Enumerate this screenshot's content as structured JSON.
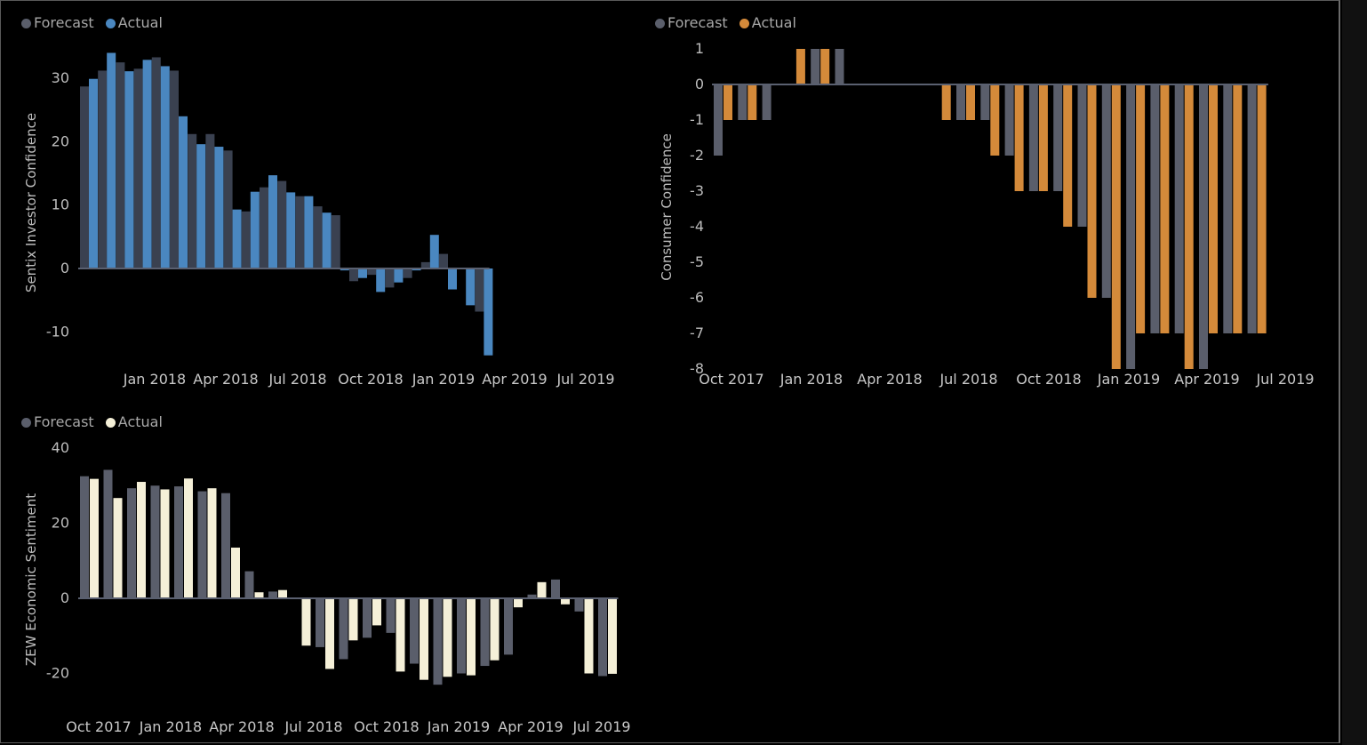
{
  "chart_data": [
    {
      "type": "bar",
      "id": "sentix",
      "ylabel": "Sentix Investor Confidence",
      "xlabel": "",
      "ylim": [
        -15,
        35
      ],
      "yticks": [
        -10,
        0,
        10,
        20,
        30
      ],
      "x_tick_labels": [
        "Jan 2018",
        "Apr 2018",
        "Jul 2018",
        "Oct 2018",
        "Jan 2019",
        "Apr 2019",
        "Jul 2019"
      ],
      "legend": [
        "Forecast",
        "Actual"
      ],
      "colors": {
        "Forecast": "#3a4150",
        "Actual": "#4a87c0"
      },
      "categories": [
        "Oct 2017",
        "Nov 2017",
        "Dec 2017",
        "Jan 2018",
        "Feb 2018",
        "Mar 2018",
        "Apr 2018",
        "May 2018",
        "Jun 2018",
        "Jul 2018",
        "Aug 2018",
        "Sep 2018",
        "Oct 2018",
        "Nov 2018",
        "Dec 2018",
        "Jan 2019",
        "Feb 2019",
        "Mar 2019",
        "Apr 2019",
        "May 2019",
        "Jun 2019",
        "Jul 2019",
        "Aug 2019"
      ],
      "series": [
        {
          "name": "Forecast",
          "values": [
            28.7,
            31.2,
            32.5,
            31.5,
            33.3,
            31.2,
            21.2,
            21.2,
            18.6,
            9.0,
            12.8,
            13.8,
            11.4,
            9.8,
            8.4,
            -2.0,
            -1.0,
            -3.0,
            -1.5,
            1.0,
            2.3,
            0.0,
            -6.8
          ]
        },
        {
          "name": "Actual",
          "values": [
            29.9,
            34.0,
            31.1,
            32.9,
            31.9,
            24.0,
            19.6,
            19.2,
            9.3,
            12.1,
            14.7,
            12.0,
            11.4,
            8.8,
            -0.3,
            -1.5,
            -3.7,
            -2.2,
            -0.3,
            5.3,
            -3.3,
            -5.8,
            -13.7
          ]
        }
      ]
    },
    {
      "type": "bar",
      "id": "consumer",
      "ylabel": "Consumer Confidence",
      "xlabel": "",
      "ylim": [
        -8,
        1
      ],
      "yticks": [
        1,
        0,
        -1,
        -2,
        -3,
        -4,
        -5,
        -6,
        -7,
        -8
      ],
      "x_tick_labels": [
        "Oct 2017",
        "Jan 2018",
        "Apr 2018",
        "Jul 2018",
        "Oct 2018",
        "Jan 2019",
        "Apr 2019",
        "Jul 2019"
      ],
      "legend": [
        "Forecast",
        "Actual"
      ],
      "colors": {
        "Forecast": "#5a5e6b",
        "Actual": "#d48a3a"
      },
      "categories": [
        "Oct 2017",
        "Nov 2017",
        "Dec 2017",
        "Jan 2018",
        "Feb 2018",
        "Mar 2018",
        "Apr 2018",
        "May 2018",
        "Jun 2018",
        "Jul 2018",
        "Aug 2018",
        "Sep 2018",
        "Oct 2018",
        "Nov 2018",
        "Dec 2018",
        "Jan 2019",
        "Feb 2019",
        "Mar 2019",
        "Apr 2019",
        "May 2019",
        "Jun 2019",
        "Jul 2019",
        "Aug 2019"
      ],
      "series": [
        {
          "name": "Forecast",
          "values": [
            -2,
            -1,
            -1,
            0,
            1,
            1,
            0,
            0,
            0,
            0,
            -1,
            -1,
            -2,
            -3,
            -3,
            -4,
            -6,
            -8,
            -7,
            -7,
            -8,
            -7,
            -7
          ]
        },
        {
          "name": "Actual",
          "values": [
            -1,
            -1,
            0,
            1,
            1,
            0,
            0,
            0,
            0,
            -1,
            -1,
            -2,
            -3,
            -3,
            -4,
            -6,
            -8,
            -7,
            -7,
            -8,
            -7,
            -7,
            -7
          ]
        }
      ]
    },
    {
      "type": "bar",
      "id": "zew",
      "ylabel": "ZEW Economic Sentiment",
      "xlabel": "",
      "ylim": [
        -30,
        40
      ],
      "yticks": [
        -20,
        0,
        20,
        40
      ],
      "x_tick_labels": [
        "Oct 2017",
        "Jan 2018",
        "Apr 2018",
        "Jul 2018",
        "Oct 2018",
        "Jan 2019",
        "Apr 2019",
        "Jul 2019"
      ],
      "legend": [
        "Forecast",
        "Actual"
      ],
      "colors": {
        "Forecast": "#5a5e6b",
        "Actual": "#f5f0d8"
      },
      "categories": [
        "Oct 2017",
        "Nov 2017",
        "Dec 2017",
        "Jan 2018",
        "Feb 2018",
        "Mar 2018",
        "Apr 2018",
        "May 2018",
        "Jun 2018",
        "Jul 2018",
        "Aug 2018",
        "Sep 2018",
        "Oct 2018",
        "Nov 2018",
        "Dec 2018",
        "Jan 2019",
        "Feb 2019",
        "Mar 2019",
        "Apr 2019",
        "May 2019",
        "Jun 2019",
        "Jul 2019",
        "Aug 2019"
      ],
      "series": [
        {
          "name": "Forecast",
          "values": [
            32.5,
            34.2,
            29.3,
            30.0,
            29.8,
            28.5,
            28.0,
            7.2,
            1.8,
            0.0,
            -13.0,
            -16.2,
            -10.5,
            -9.2,
            -17.4,
            -23.0,
            -20.0,
            -18.0,
            -15.0,
            1.0,
            5.0,
            -3.5,
            -20.7
          ]
        },
        {
          "name": "Actual",
          "values": [
            31.8,
            26.7,
            31.0,
            29.0,
            31.9,
            29.3,
            13.5,
            1.6,
            2.2,
            -12.6,
            -18.8,
            -11.2,
            -7.2,
            -19.5,
            -21.7,
            -20.9,
            -20.5,
            -16.5,
            -2.4,
            4.3,
            -1.6,
            -20.0,
            -20.1
          ]
        }
      ]
    }
  ]
}
